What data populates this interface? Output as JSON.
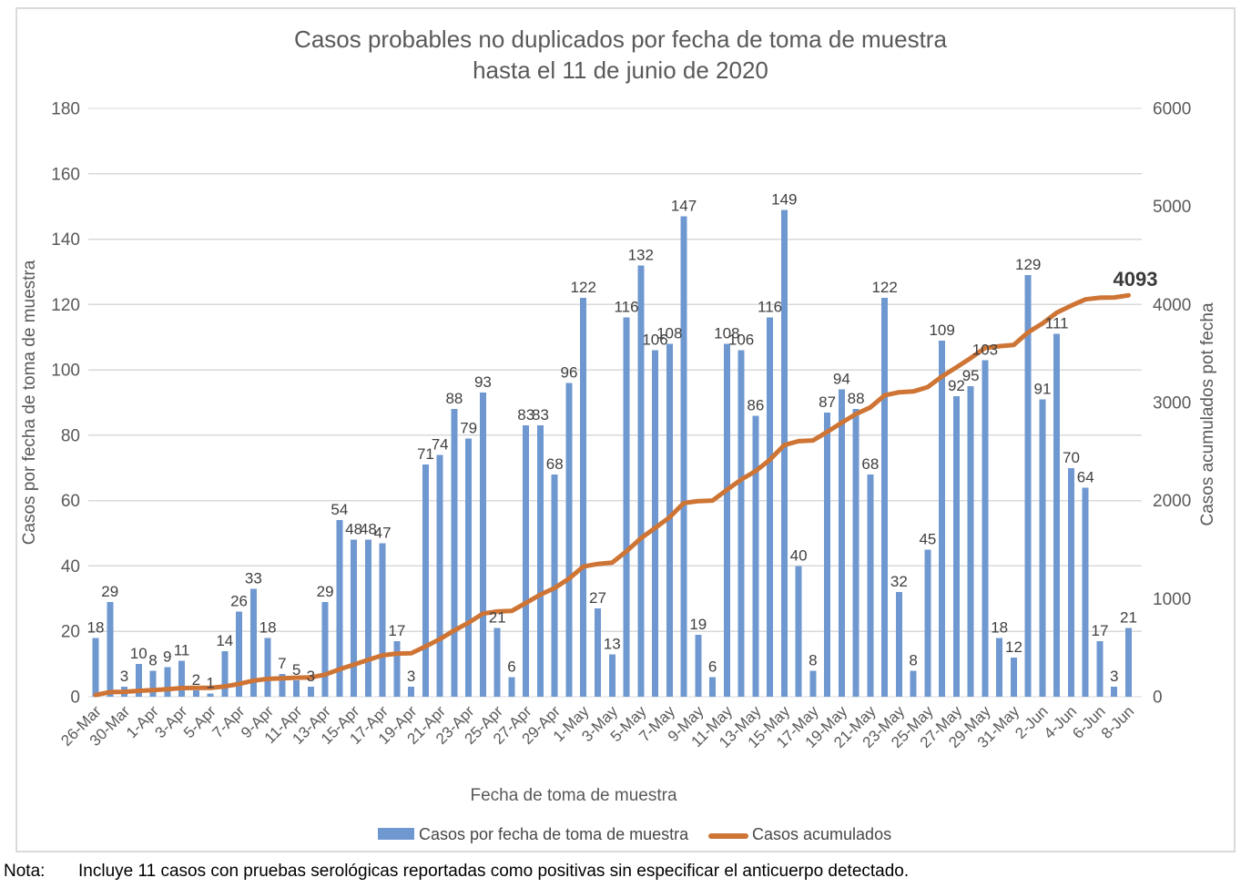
{
  "title": {
    "line1": "Casos probables no duplicados por fecha de toma de muestra",
    "line2": "hasta el 11 de junio de 2020"
  },
  "axes": {
    "left_title": "Casos por fecha de toma de muestra",
    "right_title": "Casos acumulados pot fecha",
    "x_title": "Fecha de toma de muestra"
  },
  "legend": {
    "bar_label": "Casos por fecha de toma de muestra",
    "line_label": "Casos acumulados"
  },
  "note": {
    "label": "Nota:",
    "text": "Incluye 11 casos con pruebas serológicas reportadas como positivas sin especificar el anticuerpo detectado."
  },
  "colors": {
    "bar": "#6F98D1",
    "line": "#CE7434",
    "gridline": "#D9D9D9",
    "axis_text": "#595959",
    "data_label": "#404040",
    "title_text": "#595959",
    "annotation": "#3A3A3A",
    "frame_border": "#DADADA",
    "note_text": "#000000",
    "legend_text": "#474747"
  },
  "chart_data": {
    "type": "bar+line",
    "title": "Casos probables no duplicados por fecha de toma de muestra hasta el 11 de junio de 2020",
    "xlabel": "Fecha de toma de muestra",
    "ylabel_left": "Casos por fecha de toma de muestra",
    "ylabel_right": "Casos acumulados pot fecha",
    "grid": "horizontal only",
    "legend_position": "bottom",
    "x_label_every": 2,
    "x_tick_labels": [
      "26-Mar",
      "30-Mar",
      "1-Apr",
      "3-Apr",
      "5-Apr",
      "7-Apr",
      "9-Apr",
      "11-Apr",
      "13-Apr",
      "15-Apr",
      "17-Apr",
      "19-Apr",
      "21-Apr",
      "23-Apr",
      "25-Apr",
      "27-Apr",
      "29-Apr",
      "1-May",
      "3-May",
      "5-May",
      "7-May",
      "9-May",
      "11-May",
      "13-May",
      "15-May",
      "17-May",
      "19-May",
      "21-May",
      "23-May",
      "25-May",
      "27-May",
      "29-May",
      "31-May",
      "2-Jun",
      "4-Jun",
      "6-Jun",
      "8-Jun"
    ],
    "left_axis": {
      "min": 0,
      "max": 180,
      "step": 20,
      "ticks": [
        0,
        20,
        40,
        60,
        80,
        100,
        120,
        140,
        160,
        180
      ]
    },
    "right_axis": {
      "min": 0,
      "max": 6000,
      "step": 1000,
      "ticks": [
        0,
        1000,
        2000,
        3000,
        4000,
        5000,
        6000
      ]
    },
    "bar_series": {
      "name": "Casos por fecha de toma de muestra",
      "values": [
        18,
        29,
        3,
        10,
        8,
        9,
        11,
        2,
        1,
        14,
        26,
        33,
        18,
        7,
        5,
        3,
        29,
        54,
        48,
        48,
        47,
        17,
        3,
        71,
        74,
        88,
        79,
        93,
        21,
        6,
        83,
        83,
        68,
        96,
        122,
        27,
        13,
        116,
        132,
        106,
        108,
        147,
        19,
        6,
        108,
        106,
        86,
        116,
        149,
        40,
        8,
        87,
        94,
        88,
        68,
        122,
        32,
        8,
        45,
        109,
        92,
        95,
        103,
        18,
        12,
        129,
        91,
        111,
        70,
        64,
        17,
        3,
        21
      ]
    },
    "line_series": {
      "name": "Casos acumulados",
      "values": [
        18,
        47,
        50,
        60,
        68,
        77,
        88,
        90,
        91,
        105,
        131,
        164,
        182,
        189,
        194,
        197,
        226,
        280,
        328,
        376,
        423,
        440,
        443,
        514,
        588,
        676,
        755,
        848,
        869,
        875,
        958,
        1041,
        1109,
        1205,
        1327,
        1354,
        1367,
        1483,
        1615,
        1721,
        1829,
        1976,
        1995,
        2001,
        2109,
        2215,
        2301,
        2417,
        2566,
        2606,
        2614,
        2701,
        2795,
        2883,
        2951,
        3073,
        3105,
        3113,
        3158,
        3267,
        3359,
        3454,
        3557,
        3575,
        3587,
        3716,
        3807,
        3918,
        3988,
        4052,
        4069,
        4072,
        4093
      ],
      "final_value": 4093,
      "final_label": "4093"
    }
  }
}
